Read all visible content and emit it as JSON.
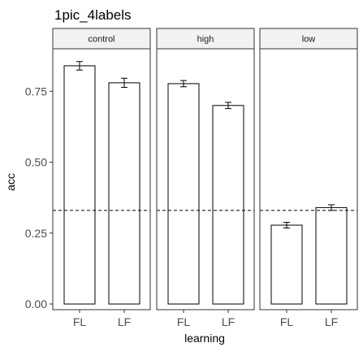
{
  "chart_data": {
    "type": "bar",
    "title": "1pic_4labels",
    "xlabel": "learning",
    "ylabel": "acc",
    "ylim": [
      -0.02,
      0.9
    ],
    "yticks": [
      0,
      0.25,
      0.5,
      0.75
    ],
    "ytick_labels": [
      "0.00",
      "0.25",
      "0.50",
      "0.75"
    ],
    "facets": [
      {
        "label": "control",
        "categories": [
          "FL",
          "LF"
        ],
        "values": [
          0.84,
          0.78
        ],
        "errors": [
          0.015,
          0.016
        ]
      },
      {
        "label": "high",
        "categories": [
          "FL",
          "LF"
        ],
        "values": [
          0.777,
          0.7
        ],
        "errors": [
          0.011,
          0.011
        ]
      },
      {
        "label": "low",
        "categories": [
          "FL",
          "LF"
        ],
        "values": [
          0.278,
          0.34
        ],
        "errors": [
          0.01,
          0.01
        ]
      }
    ],
    "reference_line": 0.33,
    "grid": false,
    "colors": {
      "bar_fill": "#ffffff",
      "bar_stroke": "#000000",
      "strip_fill": "#f2f2f2",
      "panel_border": "#333333",
      "axis_text": "#4d4d4d",
      "axis_title": "#000000"
    }
  }
}
